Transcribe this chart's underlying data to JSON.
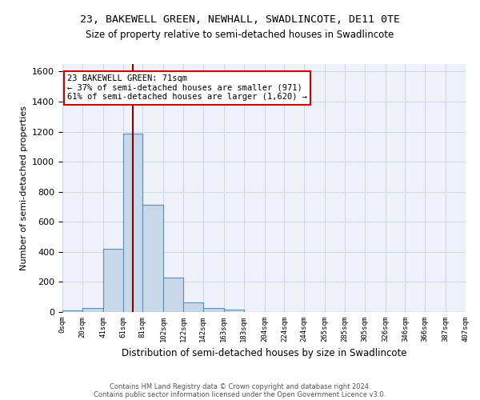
{
  "title1": "23, BAKEWELL GREEN, NEWHALL, SWADLINCOTE, DE11 0TE",
  "title2": "Size of property relative to semi-detached houses in Swadlincote",
  "xlabel": "Distribution of semi-detached houses by size in Swadlincote",
  "ylabel": "Number of semi-detached properties",
  "bin_edges": [
    0,
    20,
    41,
    61,
    81,
    102,
    122,
    142,
    163,
    183,
    204,
    224,
    244,
    265,
    285,
    305,
    326,
    346,
    366,
    387,
    407
  ],
  "bar_heights": [
    10,
    25,
    420,
    1185,
    715,
    230,
    65,
    25,
    15,
    0,
    0,
    0,
    0,
    0,
    0,
    0,
    0,
    0,
    0,
    0
  ],
  "bar_color": "#c8d8e8",
  "bar_edge_color": "#5b8db8",
  "grid_color": "#d0d8e8",
  "bg_color": "#eef2f8",
  "property_size": 71,
  "vline_color": "#8b0000",
  "annotation_text": "23 BAKEWELL GREEN: 71sqm\n← 37% of semi-detached houses are smaller (971)\n61% of semi-detached houses are larger (1,620) →",
  "annotation_box_color": "#ffffff",
  "annotation_box_edge": "#cc0000",
  "footer1": "Contains HM Land Registry data © Crown copyright and database right 2024.",
  "footer2": "Contains public sector information licensed under the Open Government Licence v3.0.",
  "ylim": [
    0,
    1650
  ],
  "xlim": [
    0,
    407
  ],
  "tick_labels": [
    "0sqm",
    "20sqm",
    "41sqm",
    "61sqm",
    "81sqm",
    "102sqm",
    "122sqm",
    "142sqm",
    "163sqm",
    "183sqm",
    "204sqm",
    "224sqm",
    "244sqm",
    "265sqm",
    "285sqm",
    "305sqm",
    "326sqm",
    "346sqm",
    "366sqm",
    "387sqm",
    "407sqm"
  ]
}
